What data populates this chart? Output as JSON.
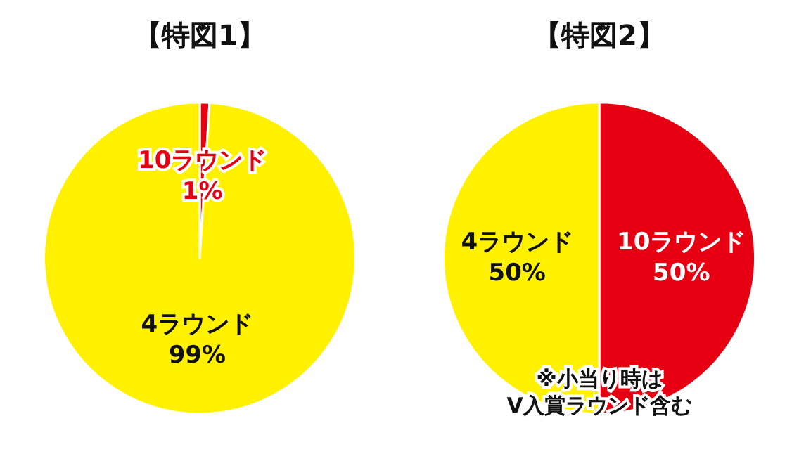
{
  "chart_data": [
    {
      "type": "pie",
      "title": "【特図1】",
      "categories": [
        "10ラウンド",
        "4ラウンド"
      ],
      "values": [
        1,
        99
      ],
      "value_labels": [
        "1%",
        "99%"
      ],
      "colors": [
        "#e60012",
        "#fff100"
      ]
    },
    {
      "type": "pie",
      "title": "【特図2】",
      "categories": [
        "10ラウンド",
        "4ラウンド"
      ],
      "values": [
        50,
        50
      ],
      "value_labels": [
        "50%",
        "50%"
      ],
      "colors": [
        "#e60012",
        "#fff100"
      ],
      "annotations": [
        "※小当り時は\nV入賞ラウンド含む"
      ]
    }
  ]
}
